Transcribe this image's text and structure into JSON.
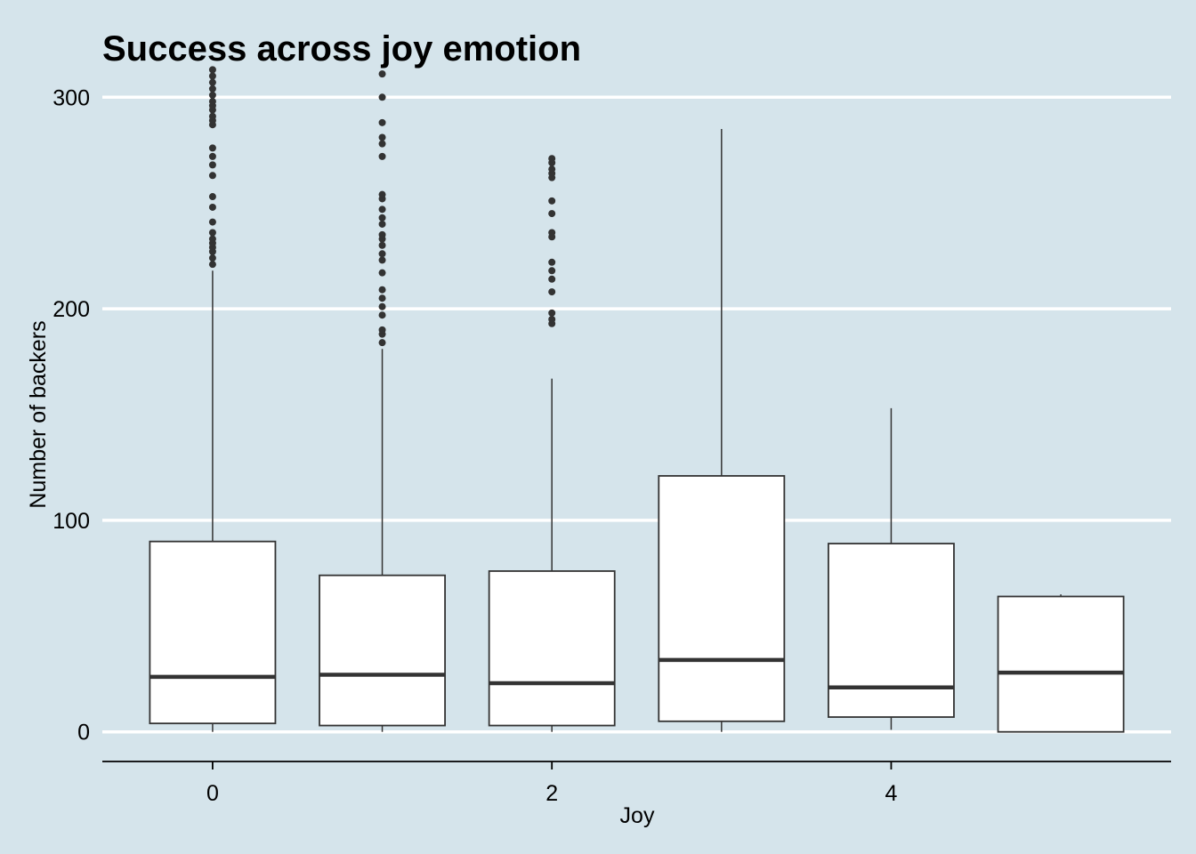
{
  "chart_data": {
    "type": "boxplot",
    "title": "Success across joy emotion",
    "xlabel": "Joy",
    "ylabel": "Number of backers",
    "xlim": [
      -0.65,
      5.65
    ],
    "ylim": [
      -14,
      314
    ],
    "x_ticks": [
      0,
      2,
      4
    ],
    "y_ticks": [
      0,
      100,
      200,
      300
    ],
    "grid": "horizontal-major",
    "colors": {
      "background": "#d5e4eb",
      "gridline": "#ffffff",
      "box_fill": "#ffffff",
      "stroke": "#333333",
      "outlier": "#333333"
    },
    "boxes": [
      {
        "x": 0,
        "q1": 4,
        "median": 26,
        "q3": 90,
        "whisker_low": 0,
        "whisker_high": 218,
        "outliers": [
          221,
          224,
          227,
          229,
          231,
          233,
          236,
          241,
          248,
          253,
          263,
          268,
          272,
          276,
          287,
          289,
          291,
          294,
          296,
          298,
          301,
          304,
          307,
          310,
          313
        ]
      },
      {
        "x": 1,
        "q1": 3,
        "median": 27,
        "q3": 74,
        "whisker_low": 0,
        "whisker_high": 181,
        "outliers": [
          184,
          188,
          190,
          197,
          201,
          205,
          209,
          217,
          223,
          226,
          230,
          233,
          235,
          240,
          243,
          247,
          252,
          254,
          272,
          278,
          281,
          288,
          300,
          311
        ]
      },
      {
        "x": 2,
        "q1": 3,
        "median": 23,
        "q3": 76,
        "whisker_low": 0,
        "whisker_high": 167,
        "outliers": [
          193,
          195,
          198,
          208,
          214,
          218,
          222,
          234,
          236,
          245,
          251,
          262,
          264,
          266,
          269,
          271
        ]
      },
      {
        "x": 3,
        "q1": 5,
        "median": 34,
        "q3": 121,
        "whisker_low": 0,
        "whisker_high": 285,
        "outliers": []
      },
      {
        "x": 4,
        "q1": 7,
        "median": 21,
        "q3": 89,
        "whisker_low": 1,
        "whisker_high": 153,
        "outliers": []
      },
      {
        "x": 5,
        "q1": 0,
        "median": 28,
        "q3": 64,
        "whisker_low": 0,
        "whisker_high": 65,
        "outliers": []
      }
    ]
  }
}
